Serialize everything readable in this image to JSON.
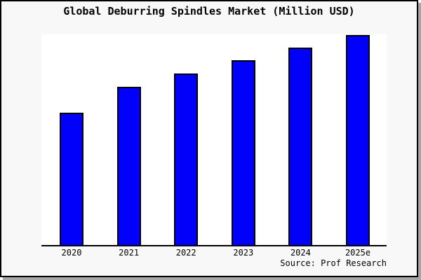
{
  "chart_data": {
    "type": "bar",
    "title": "Global Deburring Spindles Market (Million USD)",
    "categories": [
      "2020",
      "2021",
      "2022",
      "2023",
      "2024",
      "2025e"
    ],
    "values": [
      63.0,
      75.4,
      81.7,
      87.8,
      93.9,
      100.0
    ],
    "values_note": "y-axis is unlabeled; values are relative index estimated from bar heights with 2025e = 100",
    "xlabel": "",
    "ylabel": "",
    "ylim": [
      0,
      100.3
    ],
    "grid": false,
    "legend": "none",
    "y_axis_visible": false,
    "x_baseline_visible": true,
    "source_note": "Source: Prof Research",
    "colors": {
      "bar_fill": "#0000fb",
      "bar_border": "#000000",
      "plot_background": "#ffffff",
      "canvas_background": "#f8f8f8",
      "frame_border": "#000000",
      "shadow": "#a6a6a6",
      "text": "#000000"
    }
  }
}
